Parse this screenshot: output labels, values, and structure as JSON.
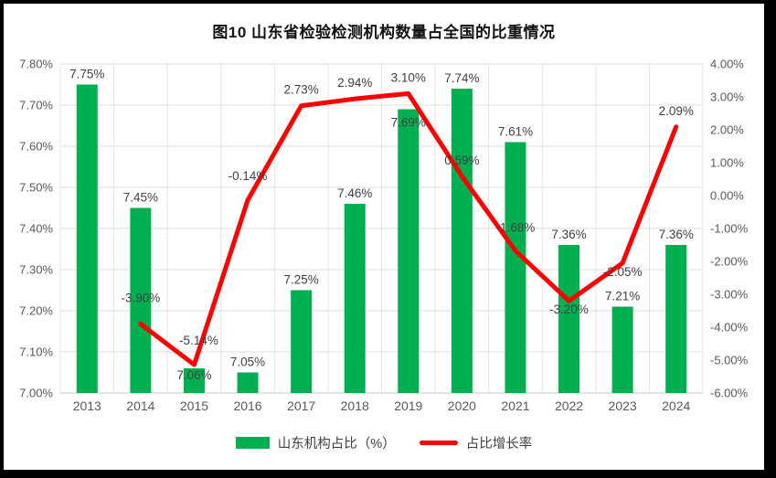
{
  "chart_data": {
    "type": "bar+line",
    "title": "图10  山东省检验检测机构数量占全国的比重情况",
    "categories": [
      "2013",
      "2014",
      "2015",
      "2016",
      "2017",
      "2018",
      "2019",
      "2020",
      "2021",
      "2022",
      "2023",
      "2024"
    ],
    "series": [
      {
        "name": "山东机构占比（%）",
        "type": "bar",
        "axis": "left",
        "color": "#00B050",
        "values": [
          7.75,
          7.45,
          7.06,
          7.05,
          7.25,
          7.46,
          7.69,
          7.74,
          7.61,
          7.36,
          7.21,
          7.36
        ],
        "labels": [
          "7.75%",
          "7.45%",
          "7.06%",
          "7.05%",
          "7.25%",
          "7.46%",
          "7.69%",
          "7.74%",
          "7.61%",
          "7.36%",
          "7.21%",
          "7.36%"
        ]
      },
      {
        "name": "占比增长率",
        "type": "line",
        "axis": "right",
        "color": "#FF0000",
        "values": [
          null,
          -3.9,
          -5.14,
          -0.14,
          2.73,
          2.94,
          3.1,
          0.59,
          -1.68,
          -3.2,
          -2.05,
          2.09
        ],
        "labels": [
          null,
          "-3.90%",
          "-5.14%",
          "-0.14%",
          "2.73%",
          "2.94%",
          "3.10%",
          "0.59%",
          "-1.68%",
          "-3.20%",
          "-2.05%",
          "2.09%"
        ]
      }
    ],
    "left_axis": {
      "min": 7.0,
      "max": 7.8,
      "ticks": [
        {
          "value": 7.8,
          "label": "7.80%"
        },
        {
          "value": 7.7,
          "label": "7.70%"
        },
        {
          "value": 7.6,
          "label": "7.60%"
        },
        {
          "value": 7.5,
          "label": "7.50%"
        },
        {
          "value": 7.4,
          "label": "7.40%"
        },
        {
          "value": 7.3,
          "label": "7.30%"
        },
        {
          "value": 7.2,
          "label": "7.20%"
        },
        {
          "value": 7.1,
          "label": "7.10%"
        },
        {
          "value": 7.0,
          "label": "7.00%"
        }
      ]
    },
    "right_axis": {
      "min": -6.0,
      "max": 4.0,
      "ticks": [
        {
          "value": 4.0,
          "label": "4.00%"
        },
        {
          "value": 3.0,
          "label": "3.00%"
        },
        {
          "value": 2.0,
          "label": "2.00%"
        },
        {
          "value": 1.0,
          "label": "1.00%"
        },
        {
          "value": 0.0,
          "label": "0.00%"
        },
        {
          "value": -1.0,
          "label": "-1.00%"
        },
        {
          "value": -2.0,
          "label": "-2.00%"
        },
        {
          "value": -3.0,
          "label": "-3.00%"
        },
        {
          "value": -4.0,
          "label": "-4.00%"
        },
        {
          "value": -5.0,
          "label": "-5.00%"
        },
        {
          "value": -6.0,
          "label": "-6.00%"
        }
      ]
    },
    "grid": {
      "horizontal": true,
      "vertical": true
    },
    "legend_position": "bottom"
  },
  "colors": {
    "bar": "#00B050",
    "line": "#FF0000",
    "gridline": "#DCDCDC",
    "tick_label": "#595959",
    "data_label": "#404040",
    "title": "#111111",
    "frame": "#000000",
    "background": "#FFFFFF"
  }
}
